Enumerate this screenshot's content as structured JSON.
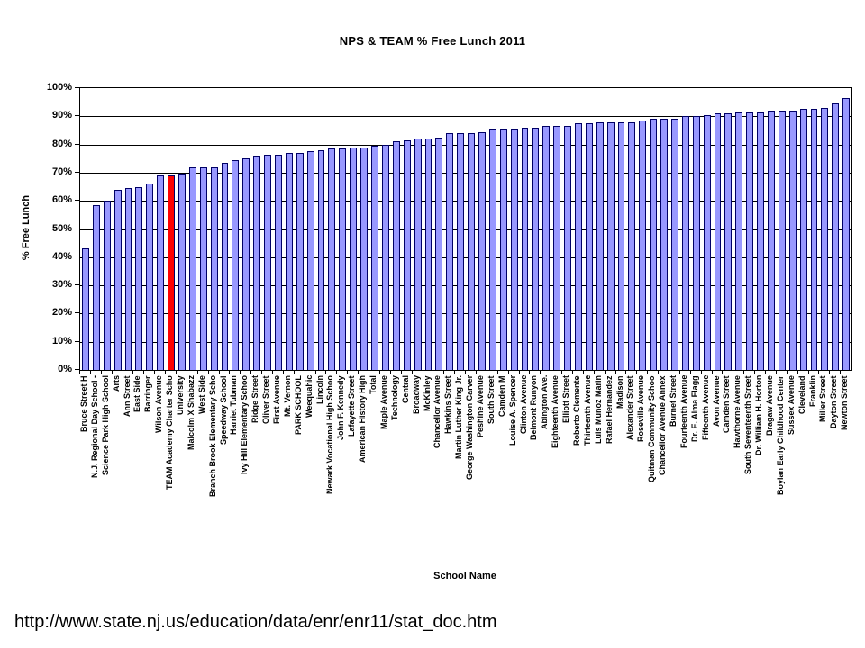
{
  "page": {
    "source_url": "http://www.state.nj.us/education/data/enr/enr11/stat_doc.htm"
  },
  "chart_data": {
    "type": "bar",
    "title": "NPS & TEAM % Free Lunch 2011",
    "xlabel": "School Name",
    "ylabel": "% Free Lunch",
    "ylim": [
      0,
      100
    ],
    "grid": true,
    "legend": false,
    "y_ticks": [
      "0%",
      "10%",
      "20%",
      "30%",
      "40%",
      "50%",
      "60%",
      "70%",
      "80%",
      "90%",
      "100%"
    ],
    "bar_color": "#9999FF",
    "highlight_color": "#FF0000",
    "highlight_index": 8,
    "highlight_label": "TEAM Academy Charter Scho",
    "categories": [
      "Bruce Street H",
      "N.J. Regional Day School -",
      "Science Park High School",
      "Arts",
      "Ann Street",
      "East Side",
      "Barringer",
      "Wilson Avenue",
      "TEAM Academy Charter Scho",
      "University",
      "Malcolm X Shabazz",
      "West Side",
      "Branch Brook Elementary Scho",
      "Speedway School",
      "Harriet Tubman",
      "Ivy Hill Elementary Schoo",
      "Ridge Street",
      "Oliver Street",
      "First Avenue",
      "Mt. Vernon",
      "PARK SCHOOL",
      "Weequahic",
      "Lincoln",
      "Newark Vocational High Schoo",
      "John F. Kennedy",
      "Lafayette Street",
      "American History High",
      "Total",
      "Maple Avenue",
      "Technology",
      "Central",
      "Broadway",
      "McKinley",
      "Chancellor Avenue",
      "Hawkins Street",
      "Martin Luther King Jr.",
      "George Washington Carver",
      "Peshine Avenue",
      "South Street",
      "Camden M",
      "Louise A. Spencer",
      "Clinton Avenue",
      "Belmont Runyon",
      "Abington Ave.",
      "Eighteenth Avenue",
      "Elliott Street",
      "Roberto Clemente",
      "Thirteenth Avenue",
      "Luis Munoz Marin",
      "Rafael Hernandez",
      "Madison",
      "Alexander Street",
      "Roseville Avenue",
      "Quitman Community Schoo",
      "Chancellor Avenue Annex",
      "Burnet Street",
      "Fourteenth Avenue",
      "Dr. E. Alma Flagg",
      "Fifteenth Avenue",
      "Avon Avenue",
      "Camden Street",
      "Hawthorne Avenue",
      "South Seventeenth Street",
      "Dr. William H. Horton",
      "Bragaw Avenue",
      "Boylan Early Childhood Center",
      "Sussex Avenue",
      "Cleveland",
      "Franklin",
      "Miller Street",
      "Dayton Street",
      "Newton Street"
    ],
    "values": [
      43,
      58.5,
      60,
      64,
      64.5,
      65,
      66,
      69,
      69,
      69.5,
      72,
      72,
      72,
      73.5,
      74.5,
      75,
      76,
      76.5,
      76.5,
      77,
      77,
      77.5,
      78,
      78.5,
      78.5,
      79,
      79,
      79.5,
      80,
      81,
      81.5,
      82,
      82,
      82.5,
      84,
      84,
      84,
      84.5,
      85.5,
      85.5,
      85.5,
      86,
      86,
      86.5,
      86.5,
      86.5,
      87.5,
      87.5,
      88,
      88,
      88,
      88,
      88.5,
      89,
      89,
      89,
      90,
      90,
      90.5,
      91,
      91,
      91.5,
      91.5,
      91.5,
      92,
      92,
      92,
      92.5,
      92.5,
      93,
      94.5,
      96.5
    ]
  }
}
